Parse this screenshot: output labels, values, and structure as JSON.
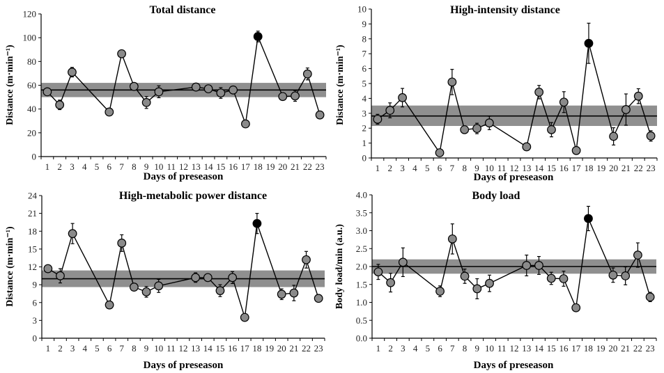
{
  "figure": {
    "band_color": "#8f8f8f",
    "marker_color": "#8a8a8a",
    "highlight_marker_color": "#000000",
    "line_color": "#000000"
  },
  "chart_data": [
    {
      "type": "line",
      "title": "Total distance",
      "xlabel": "Days of preseason",
      "ylabel": "Distance (m·min⁻¹)",
      "ylim": [
        0,
        120
      ],
      "yticks": [
        "0",
        "20",
        "40",
        "60",
        "80",
        "100",
        "120"
      ],
      "categories": [
        "1",
        "2",
        "3",
        "4",
        "5",
        "6",
        "7",
        "8",
        "9",
        "10",
        "11",
        "12",
        "13",
        "14",
        "15",
        "16",
        "17",
        "18",
        "19",
        "20",
        "21",
        "22",
        "23"
      ],
      "reference_mean": 56,
      "reference_band": [
        50,
        62
      ],
      "highlight_day": "18",
      "points": [
        {
          "day": "1",
          "value": 54.5,
          "err": 0
        },
        {
          "day": "2",
          "value": 43.5,
          "err": 4
        },
        {
          "day": "3",
          "value": 71,
          "err": 4
        },
        {
          "day": "6",
          "value": 37.5,
          "err": 0
        },
        {
          "day": "7",
          "value": 86.5,
          "err": 0
        },
        {
          "day": "8",
          "value": 59,
          "err": 0
        },
        {
          "day": "9",
          "value": 45.5,
          "err": 5
        },
        {
          "day": "10",
          "value": 54.5,
          "err": 5
        },
        {
          "day": "13",
          "value": 58.5,
          "err": 0
        },
        {
          "day": "14",
          "value": 57,
          "err": 0
        },
        {
          "day": "15",
          "value": 53.5,
          "err": 4.5
        },
        {
          "day": "16",
          "value": 56,
          "err": 0
        },
        {
          "day": "17",
          "value": 27.5,
          "err": 0
        },
        {
          "day": "18",
          "value": 101,
          "err": 4.5
        },
        {
          "day": "20",
          "value": 50.5,
          "err": 0
        },
        {
          "day": "21",
          "value": 51,
          "err": 4.5
        },
        {
          "day": "22",
          "value": 69.5,
          "err": 5
        },
        {
          "day": "23",
          "value": 35,
          "err": 0
        }
      ]
    },
    {
      "type": "line",
      "title": "High-intensity distance",
      "xlabel": "Days of preseason",
      "ylabel": "Distance (m·min⁻¹)",
      "ylim": [
        0,
        10
      ],
      "yticks": [
        "0",
        "1",
        "2",
        "3",
        "4",
        "5",
        "6",
        "7",
        "8",
        "9",
        "10"
      ],
      "categories": [
        "1",
        "2",
        "3",
        "4",
        "5",
        "6",
        "7",
        "8",
        "9",
        "10",
        "11",
        "12",
        "13",
        "14",
        "15",
        "16",
        "17",
        "18",
        "19",
        "20",
        "21",
        "22",
        "23"
      ],
      "reference_mean": 2.82,
      "reference_band": [
        2.15,
        3.52
      ],
      "highlight_day": "18",
      "points": [
        {
          "day": "1",
          "value": 2.6,
          "err": 0.33
        },
        {
          "day": "2",
          "value": 3.2,
          "err": 0.5
        },
        {
          "day": "3",
          "value": 4.05,
          "err": 0.62
        },
        {
          "day": "6",
          "value": 0.35,
          "err": 0
        },
        {
          "day": "7",
          "value": 5.1,
          "err": 0.85
        },
        {
          "day": "8",
          "value": 1.9,
          "err": 0.25
        },
        {
          "day": "9",
          "value": 1.98,
          "err": 0.35
        },
        {
          "day": "10",
          "value": 2.35,
          "err": 0.45
        },
        {
          "day": "13",
          "value": 0.75,
          "err": 0
        },
        {
          "day": "14",
          "value": 4.42,
          "err": 0.45
        },
        {
          "day": "15",
          "value": 1.9,
          "err": 0.48
        },
        {
          "day": "16",
          "value": 3.75,
          "err": 0.7
        },
        {
          "day": "17",
          "value": 0.5,
          "err": 0
        },
        {
          "day": "18",
          "value": 7.7,
          "err": 1.35
        },
        {
          "day": "20",
          "value": 1.45,
          "err": 0.58
        },
        {
          "day": "21",
          "value": 3.25,
          "err": 1.05
        },
        {
          "day": "22",
          "value": 4.15,
          "err": 0.5
        },
        {
          "day": "23",
          "value": 1.48,
          "err": 0.35
        }
      ]
    },
    {
      "type": "line",
      "title": "High-metabolic power distance",
      "xlabel": "Days of preseason",
      "ylabel": "Distance (m·min⁻¹)",
      "ylim": [
        0,
        24
      ],
      "yticks": [
        "0",
        "3",
        "6",
        "9",
        "12",
        "15",
        "18",
        "21",
        "24"
      ],
      "categories": [
        "1",
        "2",
        "3",
        "4",
        "5",
        "6",
        "7",
        "8",
        "9",
        "10",
        "11",
        "12",
        "13",
        "14",
        "15",
        "16",
        "17",
        "18",
        "19",
        "20",
        "21",
        "22",
        "23"
      ],
      "reference_mean": 10,
      "reference_band": [
        8.6,
        11.4
      ],
      "highlight_day": "18",
      "points": [
        {
          "day": "1",
          "value": 11.7,
          "err": 0.6
        },
        {
          "day": "2",
          "value": 10.5,
          "err": 1.2
        },
        {
          "day": "3",
          "value": 17.6,
          "err": 1.7
        },
        {
          "day": "6",
          "value": 5.6,
          "err": 0
        },
        {
          "day": "7",
          "value": 16.0,
          "err": 1.4
        },
        {
          "day": "8",
          "value": 8.6,
          "err": 0
        },
        {
          "day": "9",
          "value": 7.8,
          "err": 0.9
        },
        {
          "day": "10",
          "value": 8.8,
          "err": 1.1
        },
        {
          "day": "13",
          "value": 10.2,
          "err": 0.8
        },
        {
          "day": "14",
          "value": 10.2,
          "err": 0
        },
        {
          "day": "15",
          "value": 8.0,
          "err": 1.0
        },
        {
          "day": "16",
          "value": 10.2,
          "err": 1.0
        },
        {
          "day": "17",
          "value": 3.5,
          "err": 0
        },
        {
          "day": "18",
          "value": 19.3,
          "err": 1.7
        },
        {
          "day": "20",
          "value": 7.4,
          "err": 0.9
        },
        {
          "day": "21",
          "value": 7.6,
          "err": 1.3
        },
        {
          "day": "22",
          "value": 13.2,
          "err": 1.4
        },
        {
          "day": "23",
          "value": 6.7,
          "err": 0
        }
      ]
    },
    {
      "type": "line",
      "title": "Body load",
      "xlabel": "Days of preseason",
      "ylabel": "Body load/min (a.u.)",
      "ylim": [
        0,
        4
      ],
      "yticks": [
        "0.0",
        "0.5",
        "1.0",
        "1.5",
        "2.0",
        "2.5",
        "3.0",
        "3.5",
        "4.0"
      ],
      "categories": [
        "1",
        "2",
        "3",
        "4",
        "5",
        "6",
        "7",
        "8",
        "9",
        "10",
        "11",
        "12",
        "13",
        "14",
        "15",
        "16",
        "17",
        "18",
        "19",
        "20",
        "21",
        "22",
        "23"
      ],
      "reference_mean": 2.0,
      "reference_band": [
        1.8,
        2.2
      ],
      "highlight_day": "18",
      "points": [
        {
          "day": "1",
          "value": 1.85,
          "err": 0.21
        },
        {
          "day": "2",
          "value": 1.55,
          "err": 0.26
        },
        {
          "day": "3",
          "value": 2.12,
          "err": 0.4
        },
        {
          "day": "6",
          "value": 1.31,
          "err": 0.15
        },
        {
          "day": "7",
          "value": 2.77,
          "err": 0.42
        },
        {
          "day": "8",
          "value": 1.73,
          "err": 0.2
        },
        {
          "day": "9",
          "value": 1.38,
          "err": 0.28
        },
        {
          "day": "10",
          "value": 1.53,
          "err": 0.23
        },
        {
          "day": "13",
          "value": 2.03,
          "err": 0.29
        },
        {
          "day": "14",
          "value": 2.03,
          "err": 0.25
        },
        {
          "day": "15",
          "value": 1.67,
          "err": 0.17
        },
        {
          "day": "16",
          "value": 1.66,
          "err": 0.21
        },
        {
          "day": "17",
          "value": 0.85,
          "err": 0
        },
        {
          "day": "18",
          "value": 3.34,
          "err": 0.34
        },
        {
          "day": "20",
          "value": 1.76,
          "err": 0.2
        },
        {
          "day": "21",
          "value": 1.74,
          "err": 0.25
        },
        {
          "day": "22",
          "value": 2.32,
          "err": 0.34
        },
        {
          "day": "23",
          "value": 1.15,
          "err": 0.13
        }
      ]
    }
  ]
}
